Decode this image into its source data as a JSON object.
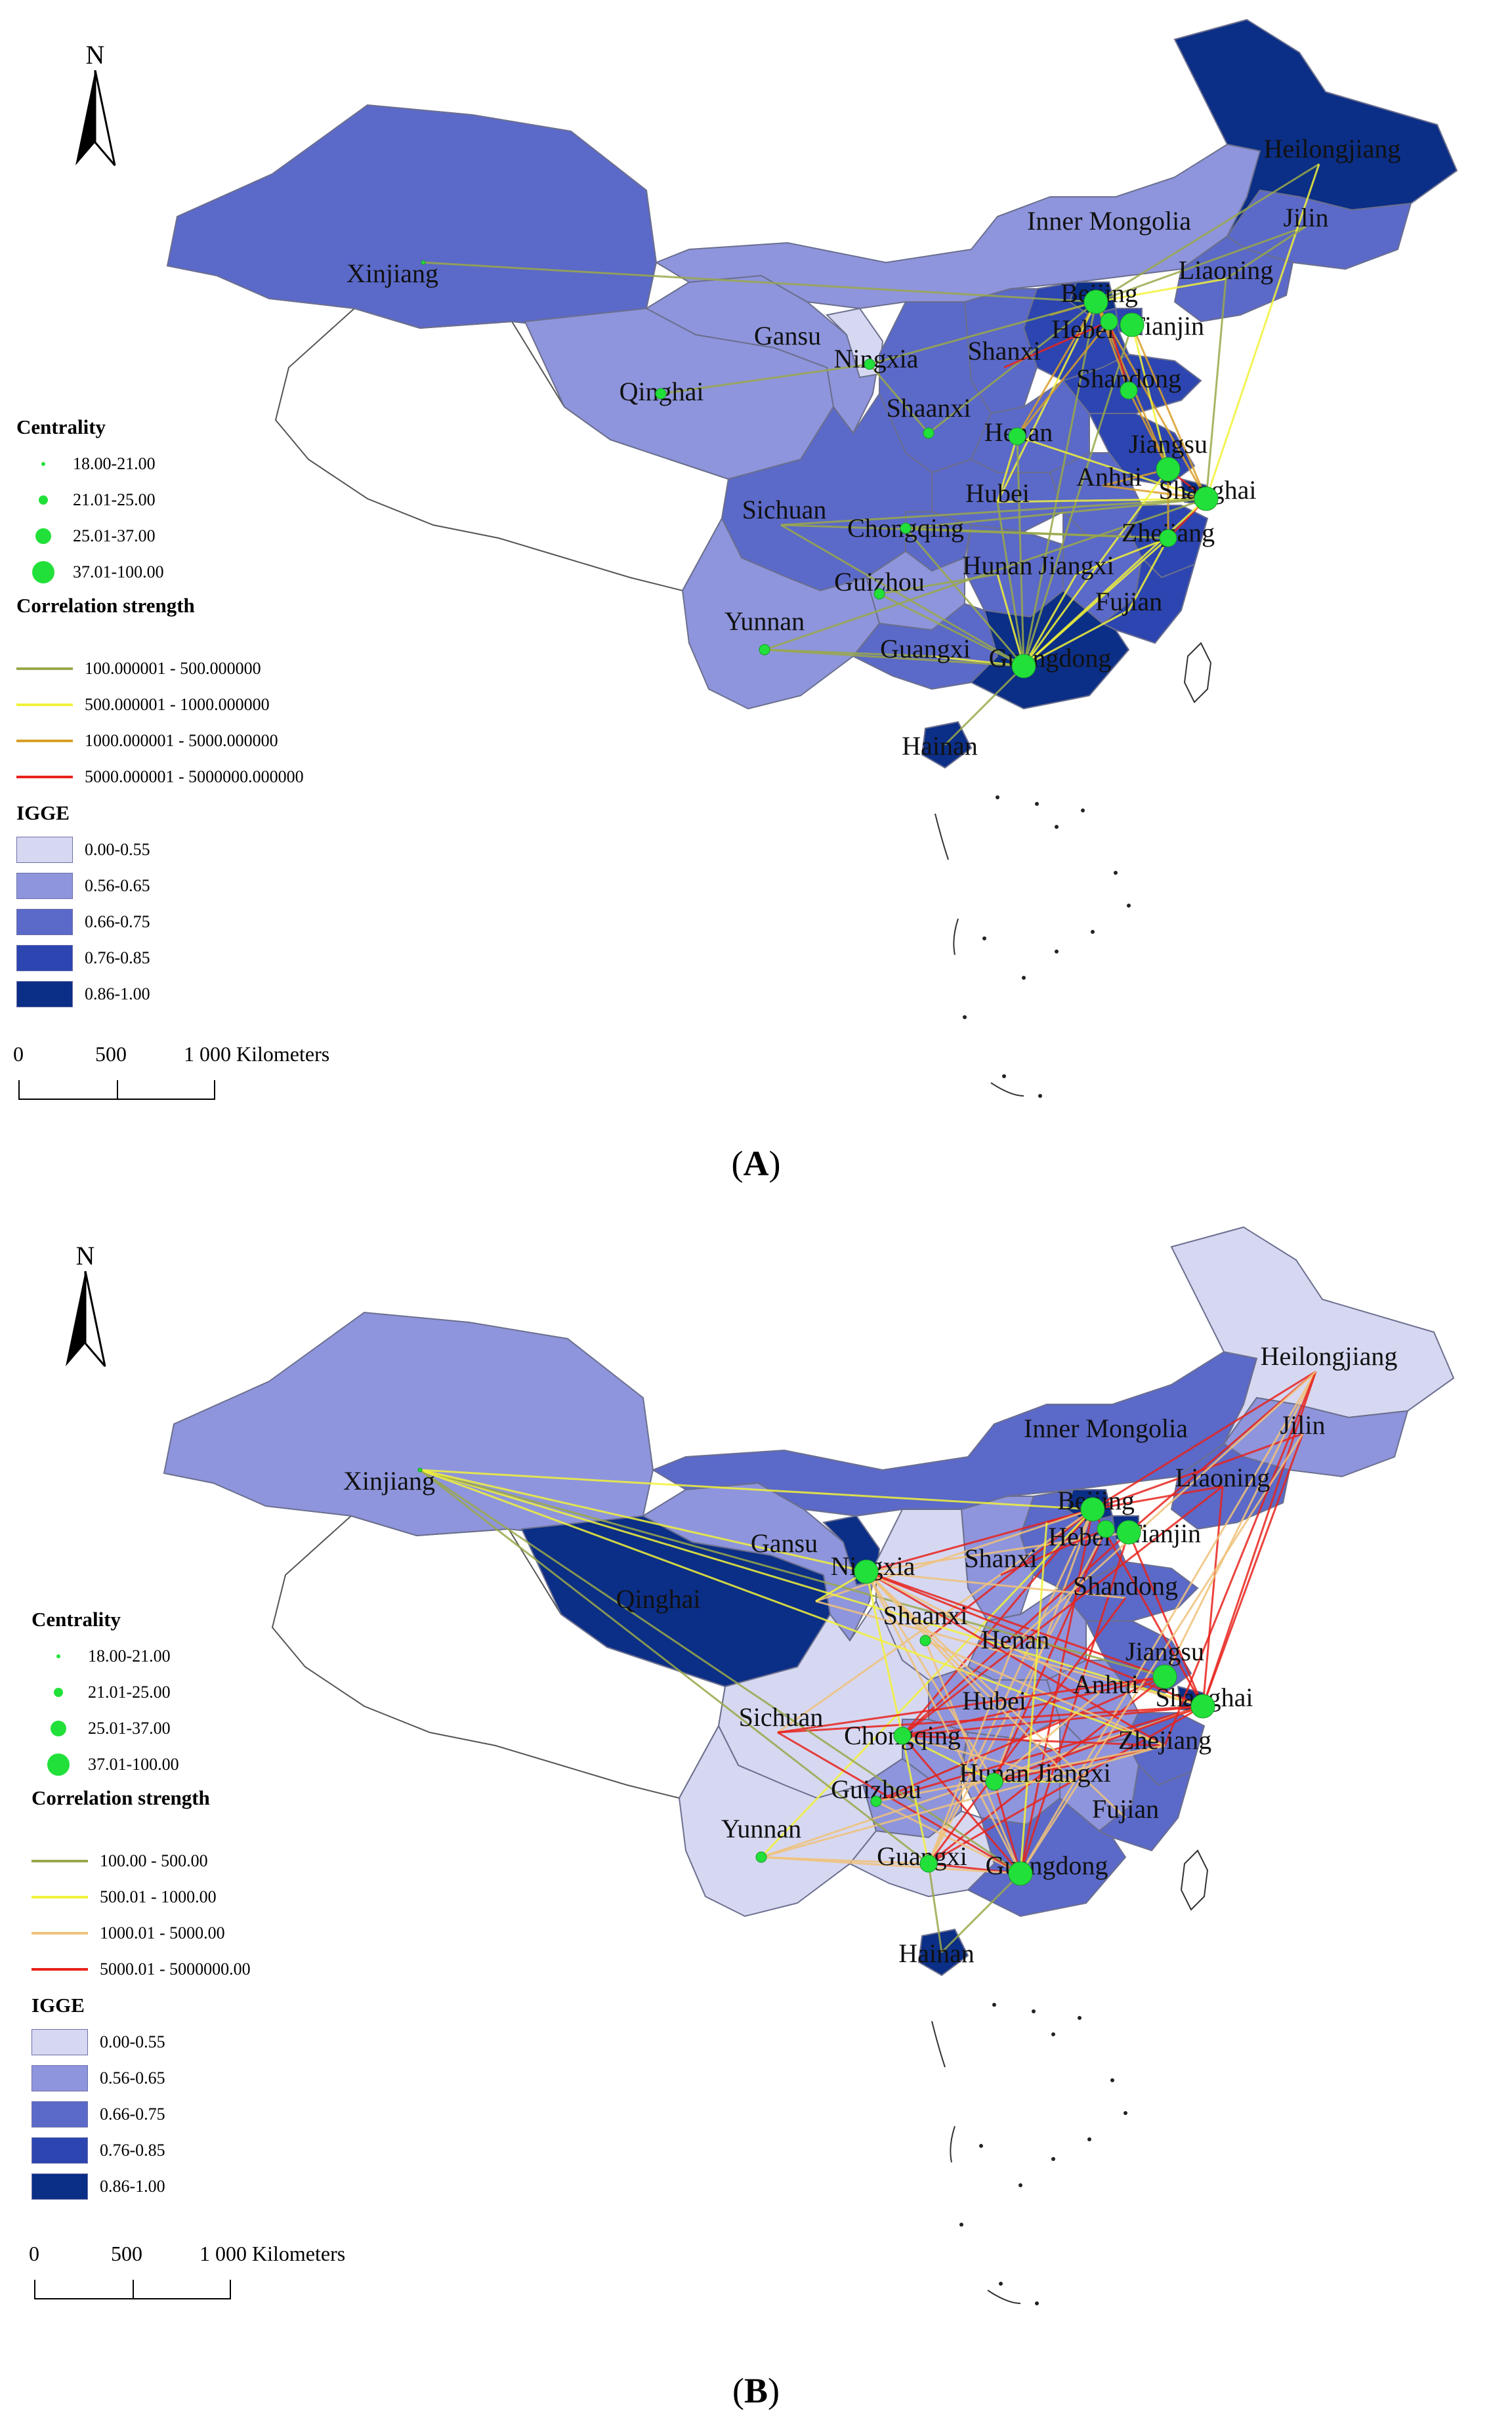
{
  "north_label": "N",
  "panels": [
    {
      "id": "A",
      "caption_letter": "A",
      "legend": {
        "centrality_title": "Centrality",
        "centrality": [
          "18.00-21.00",
          "21.01-25.00",
          "25.01-37.00",
          "37.01-100.00"
        ],
        "corr_title": "Correlation strength",
        "corr": [
          {
            "label": "100.000001 - 500.000000",
            "color": "#9aa84a"
          },
          {
            "label": "500.000001 - 1000.000000",
            "color": "#f2f23a"
          },
          {
            "label": "1000.000001 - 5000.000000",
            "color": "#d9a02a"
          },
          {
            "label": "5000.000001 - 5000000.000000",
            "color": "#e8231c"
          }
        ],
        "igge_title": "IGGE",
        "igge": [
          {
            "label": "0.00-0.55",
            "color": "#d6d8f2"
          },
          {
            "label": "0.56-0.65",
            "color": "#8e95dc"
          },
          {
            "label": "0.66-0.75",
            "color": "#5b69c8"
          },
          {
            "label": "0.76-0.85",
            "color": "#2c45b0"
          },
          {
            "label": "0.86-1.00",
            "color": "#0b2e86"
          }
        ]
      },
      "scale": {
        "zero": "0",
        "mid": "500",
        "end": "1 000 Kilometers"
      },
      "provinces": [
        {
          "name": "Heilongjiang",
          "igge": "0.86-1.00"
        },
        {
          "name": "Jilin",
          "igge": "0.66-0.75"
        },
        {
          "name": "Liaoning",
          "igge": "0.66-0.75"
        },
        {
          "name": "Inner Mongolia",
          "igge": "0.56-0.65"
        },
        {
          "name": "Xinjiang",
          "igge": "0.66-0.75"
        },
        {
          "name": "Qinghai",
          "igge": "0.56-0.65"
        },
        {
          "name": "Gansu",
          "igge": "0.56-0.65"
        },
        {
          "name": "Ningxia",
          "igge": "0.00-0.55"
        },
        {
          "name": "Beijing",
          "igge": "0.86-1.00"
        },
        {
          "name": "Tianjin",
          "igge": "0.76-0.85"
        },
        {
          "name": "Hebei",
          "igge": "0.76-0.85"
        },
        {
          "name": "Shanxi",
          "igge": "0.66-0.75"
        },
        {
          "name": "Shaanxi",
          "igge": "0.66-0.75"
        },
        {
          "name": "Shandong",
          "igge": "0.76-0.85"
        },
        {
          "name": "Henan",
          "igge": "0.66-0.75"
        },
        {
          "name": "Jiangsu",
          "igge": "0.76-0.85"
        },
        {
          "name": "Shanghai",
          "igge": "0.86-1.00"
        },
        {
          "name": "Anhui",
          "igge": "0.66-0.75"
        },
        {
          "name": "Hubei",
          "igge": "0.66-0.75"
        },
        {
          "name": "Sichuan",
          "igge": "0.66-0.75"
        },
        {
          "name": "Chongqing",
          "igge": "0.66-0.75"
        },
        {
          "name": "Zhejiang",
          "igge": "0.76-0.85"
        },
        {
          "name": "Hunan",
          "igge": "0.66-0.75"
        },
        {
          "name": "Jiangxi",
          "igge": "0.66-0.75"
        },
        {
          "name": "Guizhou",
          "igge": "0.56-0.65"
        },
        {
          "name": "Fujian",
          "igge": "0.76-0.85"
        },
        {
          "name": "Yunnan",
          "igge": "0.56-0.65"
        },
        {
          "name": "Guangxi",
          "igge": "0.66-0.75"
        },
        {
          "name": "Guangdong",
          "igge": "0.86-1.00"
        },
        {
          "name": "Hainan",
          "igge": "0.86-1.00"
        }
      ],
      "nodes": [
        {
          "name": "Beijing",
          "centrality": "37.01-100.00"
        },
        {
          "name": "Tianjin",
          "centrality": "37.01-100.00"
        },
        {
          "name": "Hebei",
          "centrality": "25.01-37.00"
        },
        {
          "name": "Shanghai",
          "centrality": "37.01-100.00"
        },
        {
          "name": "Jiangsu",
          "centrality": "37.01-100.00"
        },
        {
          "name": "Guangdong",
          "centrality": "37.01-100.00"
        },
        {
          "name": "Zhejiang",
          "centrality": "25.01-37.00"
        },
        {
          "name": "Henan",
          "centrality": "25.01-37.00"
        },
        {
          "name": "Shandong",
          "centrality": "25.01-37.00"
        },
        {
          "name": "Ningxia",
          "centrality": "21.01-25.00"
        },
        {
          "name": "Qinghai",
          "centrality": "21.01-25.00"
        },
        {
          "name": "Yunnan",
          "centrality": "21.01-25.00"
        },
        {
          "name": "Chongqing",
          "centrality": "21.01-25.00"
        },
        {
          "name": "Guizhou",
          "centrality": "21.01-25.00"
        },
        {
          "name": "Shaanxi",
          "centrality": "21.01-25.00"
        },
        {
          "name": "Xinjiang",
          "centrality": "18.00-21.00"
        }
      ]
    },
    {
      "id": "B",
      "caption_letter": "B",
      "legend": {
        "centrality_title": "Centrality",
        "centrality": [
          "18.00-21.00",
          "21.01-25.00",
          "25.01-37.00",
          "37.01-100.00"
        ],
        "corr_title": "Correlation strength",
        "corr": [
          {
            "label": "100.00 - 500.00",
            "color": "#9aa84a"
          },
          {
            "label": "500.01 - 1000.00",
            "color": "#f2f23a"
          },
          {
            "label": "1000.01 - 5000.00",
            "color": "#f0c27a"
          },
          {
            "label": "5000.01 - 5000000.00",
            "color": "#e8231c"
          }
        ],
        "igge_title": "IGGE",
        "igge": [
          {
            "label": "0.00-0.55",
            "color": "#d6d8f2"
          },
          {
            "label": "0.56-0.65",
            "color": "#8e95dc"
          },
          {
            "label": "0.66-0.75",
            "color": "#5b69c8"
          },
          {
            "label": "0.76-0.85",
            "color": "#2c45b0"
          },
          {
            "label": "0.86-1.00",
            "color": "#0b2e86"
          }
        ]
      },
      "scale": {
        "zero": "0",
        "mid": "500",
        "end": "1 000 Kilometers"
      },
      "provinces": [
        {
          "name": "Heilongjiang",
          "igge": "0.00-0.55"
        },
        {
          "name": "Jilin",
          "igge": "0.56-0.65"
        },
        {
          "name": "Liaoning",
          "igge": "0.66-0.75"
        },
        {
          "name": "Inner Mongolia",
          "igge": "0.66-0.75"
        },
        {
          "name": "Xinjiang",
          "igge": "0.56-0.65"
        },
        {
          "name": "Qinghai",
          "igge": "0.86-1.00"
        },
        {
          "name": "Gansu",
          "igge": "0.56-0.65"
        },
        {
          "name": "Ningxia",
          "igge": "0.86-1.00"
        },
        {
          "name": "Beijing",
          "igge": "0.86-1.00"
        },
        {
          "name": "Tianjin",
          "igge": "0.86-1.00"
        },
        {
          "name": "Hebei",
          "igge": "0.66-0.75"
        },
        {
          "name": "Shanxi",
          "igge": "0.56-0.65"
        },
        {
          "name": "Shaanxi",
          "igge": "0.00-0.55"
        },
        {
          "name": "Shandong",
          "igge": "0.66-0.75"
        },
        {
          "name": "Henan",
          "igge": "0.56-0.65"
        },
        {
          "name": "Jiangsu",
          "igge": "0.66-0.75"
        },
        {
          "name": "Shanghai",
          "igge": "0.86-1.00"
        },
        {
          "name": "Anhui",
          "igge": "0.56-0.65"
        },
        {
          "name": "Hubei",
          "igge": "0.56-0.65"
        },
        {
          "name": "Sichuan",
          "igge": "0.00-0.55"
        },
        {
          "name": "Chongqing",
          "igge": "0.56-0.65"
        },
        {
          "name": "Zhejiang",
          "igge": "0.66-0.75"
        },
        {
          "name": "Hunan",
          "igge": "0.56-0.65"
        },
        {
          "name": "Jiangxi",
          "igge": "0.56-0.65"
        },
        {
          "name": "Guizhou",
          "igge": "0.56-0.65"
        },
        {
          "name": "Fujian",
          "igge": "0.66-0.75"
        },
        {
          "name": "Yunnan",
          "igge": "0.00-0.55"
        },
        {
          "name": "Guangxi",
          "igge": "0.00-0.55"
        },
        {
          "name": "Guangdong",
          "igge": "0.66-0.75"
        },
        {
          "name": "Hainan",
          "igge": "0.86-1.00"
        }
      ],
      "nodes": [
        {
          "name": "Beijing",
          "centrality": "37.01-100.00"
        },
        {
          "name": "Tianjin",
          "centrality": "37.01-100.00"
        },
        {
          "name": "Hebei",
          "centrality": "25.01-37.00"
        },
        {
          "name": "Shanghai",
          "centrality": "37.01-100.00"
        },
        {
          "name": "Jiangsu",
          "centrality": "37.01-100.00"
        },
        {
          "name": "Guangdong",
          "centrality": "37.01-100.00"
        },
        {
          "name": "Guangxi",
          "centrality": "25.01-37.00"
        },
        {
          "name": "Ningxia",
          "centrality": "37.01-100.00"
        },
        {
          "name": "Chongqing",
          "centrality": "25.01-37.00"
        },
        {
          "name": "Hunan",
          "centrality": "25.01-37.00"
        },
        {
          "name": "Guizhou",
          "centrality": "21.01-25.00"
        },
        {
          "name": "Yunnan",
          "centrality": "21.01-25.00"
        },
        {
          "name": "Shaanxi",
          "centrality": "21.01-25.00"
        },
        {
          "name": "Xinjiang",
          "centrality": "18.00-21.00"
        }
      ]
    }
  ]
}
